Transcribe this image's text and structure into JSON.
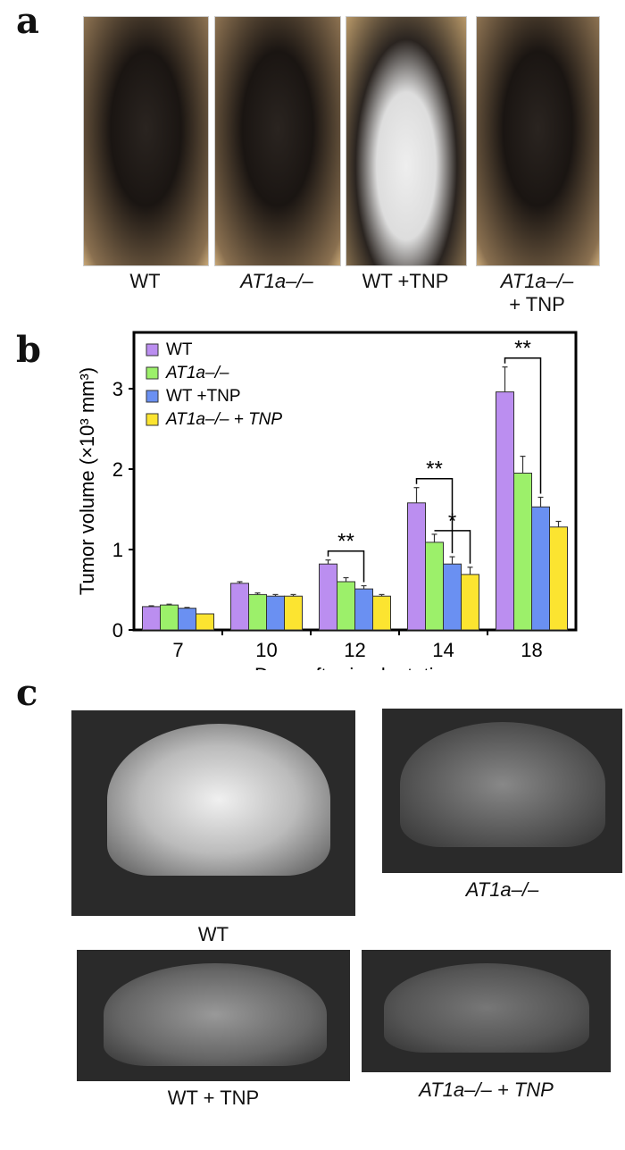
{
  "panel_labels": {
    "a": "a",
    "b": "b",
    "c": "c"
  },
  "panel_a": {
    "captions": [
      {
        "line1": "WT",
        "line2": ""
      },
      {
        "line1": "AT1a–/–",
        "line2": ""
      },
      {
        "line1": "WT +TNP",
        "line2": ""
      },
      {
        "line1": "AT1a–/–",
        "line2": "+ TNP"
      }
    ]
  },
  "panel_c": {
    "captions": [
      "WT",
      "AT1a–/–",
      "WT + TNP",
      "AT1a–/– + TNP"
    ]
  },
  "chart_data": {
    "type": "bar",
    "title": "",
    "xlabel": "Days after implantation",
    "ylabel": "Tumor volume (×10³ mm³)",
    "categories": [
      "7",
      "10",
      "12",
      "14",
      "18"
    ],
    "ylim": [
      0,
      3.7
    ],
    "yticks": [
      "0",
      "1",
      "2",
      "3"
    ],
    "legend_position": "top-left",
    "series": [
      {
        "name": "WT",
        "color": "#bb8ef0",
        "values": [
          0.29,
          0.58,
          0.82,
          1.58,
          2.96
        ],
        "errors": [
          0.01,
          0.02,
          0.05,
          0.19,
          0.31
        ]
      },
      {
        "name": "AT1a–/–",
        "color": "#9cf06a",
        "values": [
          0.31,
          0.44,
          0.6,
          1.09,
          1.95
        ],
        "errors": [
          0.01,
          0.02,
          0.05,
          0.1,
          0.21
        ]
      },
      {
        "name": "WT +TNP",
        "color": "#6a90f2",
        "values": [
          0.27,
          0.42,
          0.51,
          0.82,
          1.53
        ],
        "errors": [
          0.01,
          0.02,
          0.04,
          0.09,
          0.12
        ]
      },
      {
        "name": "AT1a–/– + TNP",
        "color": "#fce430",
        "values": [
          0.2,
          0.42,
          0.42,
          0.69,
          1.28
        ],
        "errors": [
          0.0,
          0.02,
          0.02,
          0.09,
          0.07
        ]
      }
    ],
    "annotations": [
      {
        "label": "**",
        "category": "12",
        "from_series": 0,
        "to_series": 2
      },
      {
        "label": "**",
        "category": "14",
        "from_series": 0,
        "to_series": 2
      },
      {
        "label": "*",
        "category": "14",
        "from_series": 1,
        "to_series": 3
      },
      {
        "label": "**",
        "category": "18",
        "from_series": 0,
        "to_series": 2
      }
    ]
  }
}
